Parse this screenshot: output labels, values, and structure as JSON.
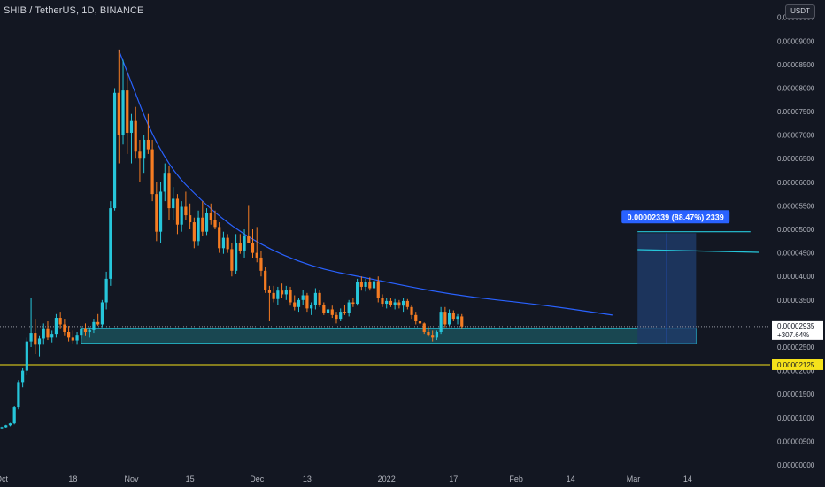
{
  "header": {
    "title": "SHIB / TetherUS, 1D, BINANCE",
    "currency": "USDT"
  },
  "colors": {
    "background": "#131722",
    "up": "#26c6da",
    "down": "#f57c22",
    "trendline": "#2962ff",
    "zone_fill": "#1f6f78",
    "zone_stroke": "#26c6da",
    "projection_fill": "#1e3a66",
    "projection_stroke": "#2962ff",
    "support_line": "#f5e21b",
    "callout": "#2962ff"
  },
  "price_tags": {
    "current": {
      "price": "0.00002935",
      "change": "+307.64%",
      "value": 2.935e-05
    },
    "support": {
      "price": "0.00002125",
      "value": 2.125e-05
    }
  },
  "range_label": "0.00002339 (88.47%) 2339",
  "chart_data": {
    "type": "candlestick",
    "title": "SHIB / TetherUS, 1D, BINANCE",
    "y_axis": {
      "unit": "USDT",
      "ticks": [
        "0.00009500",
        "0.00009000",
        "0.00008500",
        "0.00008000",
        "0.00007500",
        "0.00007000",
        "0.00006500",
        "0.00006000",
        "0.00005500",
        "0.00005000",
        "0.00004500",
        "0.00004000",
        "0.00003500",
        "0.00003000",
        "0.00002500",
        "0.00002000",
        "0.00001500",
        "0.00001000",
        "0.00000500",
        "0.00000000"
      ],
      "range": [
        0,
        9.55e-05
      ]
    },
    "x_axis": {
      "ticks": [
        "Oct",
        "18",
        "Nov",
        "15",
        "Dec",
        "13",
        "2022",
        "17",
        "Feb",
        "14",
        "Mar",
        "14"
      ],
      "tick_dates": [
        "2021-10-01",
        "2021-10-18",
        "2021-11-01",
        "2021-11-15",
        "2021-12-01",
        "2021-12-13",
        "2022-01-01",
        "2022-01-17",
        "2022-02-01",
        "2022-02-14",
        "2022-03-01",
        "2022-03-14"
      ]
    },
    "grid": false,
    "candles": [
      {
        "d": "2021-09-28",
        "o": 6.9e-06,
        "h": 7.2e-06,
        "l": 6.8e-06,
        "c": 7.1e-06
      },
      {
        "d": "2021-09-29",
        "o": 7.1e-06,
        "h": 7.5e-06,
        "l": 7e-06,
        "c": 7.4e-06
      },
      {
        "d": "2021-09-30",
        "o": 7.4e-06,
        "h": 7.9e-06,
        "l": 7.3e-06,
        "c": 7.8e-06
      },
      {
        "d": "2021-10-01",
        "o": 7.8e-06,
        "h": 8.1e-06,
        "l": 7.6e-06,
        "c": 8e-06
      },
      {
        "d": "2021-10-02",
        "o": 8e-06,
        "h": 8.5e-06,
        "l": 7.9e-06,
        "c": 8.4e-06
      },
      {
        "d": "2021-10-03",
        "o": 8.4e-06,
        "h": 8.9e-06,
        "l": 8.2e-06,
        "c": 8.8e-06
      },
      {
        "d": "2021-10-04",
        "o": 8.8e-06,
        "h": 1.25e-05,
        "l": 8.6e-06,
        "c": 1.22e-05
      },
      {
        "d": "2021-10-05",
        "o": 1.22e-05,
        "h": 1.8e-05,
        "l": 1.18e-05,
        "c": 1.76e-05
      },
      {
        "d": "2021-10-06",
        "o": 1.76e-05,
        "h": 2.05e-05,
        "l": 1.65e-05,
        "c": 2e-05
      },
      {
        "d": "2021-10-07",
        "o": 2e-05,
        "h": 2.7e-05,
        "l": 1.9e-05,
        "c": 2.62e-05
      },
      {
        "d": "2021-10-08",
        "o": 2.62e-05,
        "h": 3.55e-05,
        "l": 2.5e-05,
        "c": 2.8e-05
      },
      {
        "d": "2021-10-09",
        "o": 2.8e-05,
        "h": 3.1e-05,
        "l": 2.35e-05,
        "c": 2.55e-05
      },
      {
        "d": "2021-10-10",
        "o": 2.55e-05,
        "h": 2.75e-05,
        "l": 2.3e-05,
        "c": 2.68e-05
      },
      {
        "d": "2021-10-11",
        "o": 2.68e-05,
        "h": 3e-05,
        "l": 2.55e-05,
        "c": 2.9e-05
      },
      {
        "d": "2021-10-12",
        "o": 2.9e-05,
        "h": 3.05e-05,
        "l": 2.65e-05,
        "c": 2.7e-05
      },
      {
        "d": "2021-10-13",
        "o": 2.7e-05,
        "h": 2.85e-05,
        "l": 2.6e-05,
        "c": 2.78e-05
      },
      {
        "d": "2021-10-14",
        "o": 2.78e-05,
        "h": 3.2e-05,
        "l": 2.7e-05,
        "c": 3.12e-05
      },
      {
        "d": "2021-10-15",
        "o": 3.12e-05,
        "h": 3.25e-05,
        "l": 2.9e-05,
        "c": 2.98e-05
      },
      {
        "d": "2021-10-16",
        "o": 2.98e-05,
        "h": 3.1e-05,
        "l": 2.75e-05,
        "c": 2.82e-05
      },
      {
        "d": "2021-10-17",
        "o": 2.82e-05,
        "h": 2.95e-05,
        "l": 2.62e-05,
        "c": 2.7e-05
      },
      {
        "d": "2021-10-18",
        "o": 2.7e-05,
        "h": 2.85e-05,
        "l": 2.58e-05,
        "c": 2.64e-05
      },
      {
        "d": "2021-10-19",
        "o": 2.64e-05,
        "h": 2.82e-05,
        "l": 2.55e-05,
        "c": 2.76e-05
      },
      {
        "d": "2021-10-20",
        "o": 2.76e-05,
        "h": 2.95e-05,
        "l": 2.68e-05,
        "c": 2.9e-05
      },
      {
        "d": "2021-10-21",
        "o": 2.9e-05,
        "h": 3e-05,
        "l": 2.75e-05,
        "c": 2.82e-05
      },
      {
        "d": "2021-10-22",
        "o": 2.82e-05,
        "h": 2.92e-05,
        "l": 2.7e-05,
        "c": 2.86e-05
      },
      {
        "d": "2021-10-23",
        "o": 2.86e-05,
        "h": 3.1e-05,
        "l": 2.8e-05,
        "c": 3.03e-05
      },
      {
        "d": "2021-10-24",
        "o": 3.03e-05,
        "h": 3.2e-05,
        "l": 2.95e-05,
        "c": 2.98e-05
      },
      {
        "d": "2021-10-25",
        "o": 2.98e-05,
        "h": 3.5e-05,
        "l": 2.92e-05,
        "c": 3.45e-05
      },
      {
        "d": "2021-10-26",
        "o": 3.45e-05,
        "h": 4.1e-05,
        "l": 3.3e-05,
        "c": 3.95e-05
      },
      {
        "d": "2021-10-27",
        "o": 3.95e-05,
        "h": 5.6e-05,
        "l": 3.8e-05,
        "c": 5.45e-05
      },
      {
        "d": "2021-10-28",
        "o": 5.45e-05,
        "h": 8e-05,
        "l": 5.4e-05,
        "c": 7.9e-05
      },
      {
        "d": "2021-10-29",
        "o": 7.9e-05,
        "h": 8.82e-05,
        "l": 6.4e-05,
        "c": 7e-05
      },
      {
        "d": "2021-10-30",
        "o": 7e-05,
        "h": 8.6e-05,
        "l": 6.8e-05,
        "c": 7.95e-05
      },
      {
        "d": "2021-10-31",
        "o": 7.95e-05,
        "h": 8.3e-05,
        "l": 6.6e-05,
        "c": 7.05e-05
      },
      {
        "d": "2021-11-01",
        "o": 7.05e-05,
        "h": 7.45e-05,
        "l": 6.4e-05,
        "c": 7.3e-05
      },
      {
        "d": "2021-11-02",
        "o": 7.3e-05,
        "h": 7.6e-05,
        "l": 6.5e-05,
        "c": 6.65e-05
      },
      {
        "d": "2021-11-03",
        "o": 6.65e-05,
        "h": 6.9e-05,
        "l": 6e-05,
        "c": 6.5e-05
      },
      {
        "d": "2021-11-04",
        "o": 6.5e-05,
        "h": 7e-05,
        "l": 6.2e-05,
        "c": 6.9e-05
      },
      {
        "d": "2021-11-05",
        "o": 6.9e-05,
        "h": 7.45e-05,
        "l": 6.6e-05,
        "c": 6.7e-05
      },
      {
        "d": "2021-11-06",
        "o": 6.7e-05,
        "h": 6.9e-05,
        "l": 5.6e-05,
        "c": 5.75e-05
      },
      {
        "d": "2021-11-07",
        "o": 5.75e-05,
        "h": 6e-05,
        "l": 4.75e-05,
        "c": 4.95e-05
      },
      {
        "d": "2021-11-08",
        "o": 4.95e-05,
        "h": 6e-05,
        "l": 4.7e-05,
        "c": 5.8e-05
      },
      {
        "d": "2021-11-09",
        "o": 5.8e-05,
        "h": 6.4e-05,
        "l": 5.6e-05,
        "c": 6.2e-05
      },
      {
        "d": "2021-11-10",
        "o": 6.2e-05,
        "h": 6.35e-05,
        "l": 5.2e-05,
        "c": 5.45e-05
      },
      {
        "d": "2021-11-11",
        "o": 5.45e-05,
        "h": 5.9e-05,
        "l": 5.2e-05,
        "c": 5.65e-05
      },
      {
        "d": "2021-11-12",
        "o": 5.65e-05,
        "h": 5.75e-05,
        "l": 4.9e-05,
        "c": 5.1e-05
      },
      {
        "d": "2021-11-13",
        "o": 5.1e-05,
        "h": 5.6e-05,
        "l": 4.95e-05,
        "c": 5.48e-05
      },
      {
        "d": "2021-11-14",
        "o": 5.48e-05,
        "h": 5.8e-05,
        "l": 5.2e-05,
        "c": 5.3e-05
      },
      {
        "d": "2021-11-15",
        "o": 5.3e-05,
        "h": 5.55e-05,
        "l": 5e-05,
        "c": 5.15e-05
      },
      {
        "d": "2021-11-16",
        "o": 5.15e-05,
        "h": 5.25e-05,
        "l": 4.6e-05,
        "c": 4.75e-05
      },
      {
        "d": "2021-11-17",
        "o": 4.75e-05,
        "h": 5.4e-05,
        "l": 4.65e-05,
        "c": 5.25e-05
      },
      {
        "d": "2021-11-18",
        "o": 5.25e-05,
        "h": 5.6e-05,
        "l": 4.85e-05,
        "c": 4.95e-05
      },
      {
        "d": "2021-11-19",
        "o": 4.95e-05,
        "h": 5.45e-05,
        "l": 4.88e-05,
        "c": 5.35e-05
      },
      {
        "d": "2021-11-20",
        "o": 5.35e-05,
        "h": 5.55e-05,
        "l": 5.1e-05,
        "c": 5.2e-05
      },
      {
        "d": "2021-11-21",
        "o": 5.2e-05,
        "h": 5.4e-05,
        "l": 5e-05,
        "c": 5.05e-05
      },
      {
        "d": "2021-11-22",
        "o": 5.05e-05,
        "h": 5.15e-05,
        "l": 4.5e-05,
        "c": 4.6e-05
      },
      {
        "d": "2021-11-23",
        "o": 4.6e-05,
        "h": 4.95e-05,
        "l": 4.48e-05,
        "c": 4.82e-05
      },
      {
        "d": "2021-11-24",
        "o": 4.82e-05,
        "h": 4.9e-05,
        "l": 4.5e-05,
        "c": 4.58e-05
      },
      {
        "d": "2021-11-25",
        "o": 4.58e-05,
        "h": 4.7e-05,
        "l": 4e-05,
        "c": 4.12e-05
      },
      {
        "d": "2021-11-26",
        "o": 4.12e-05,
        "h": 4.9e-05,
        "l": 4.05e-05,
        "c": 4.7e-05
      },
      {
        "d": "2021-11-27",
        "o": 4.7e-05,
        "h": 4.9e-05,
        "l": 4.48e-05,
        "c": 4.55e-05
      },
      {
        "d": "2021-11-28",
        "o": 4.55e-05,
        "h": 5e-05,
        "l": 4.4e-05,
        "c": 4.85e-05
      },
      {
        "d": "2021-11-29",
        "o": 4.85e-05,
        "h": 5.5e-05,
        "l": 4.7e-05,
        "c": 4.7e-05
      },
      {
        "d": "2021-11-30",
        "o": 4.7e-05,
        "h": 5e-05,
        "l": 4.4e-05,
        "c": 4.5e-05
      },
      {
        "d": "2021-12-01",
        "o": 4.5e-05,
        "h": 5.05e-05,
        "l": 4.3e-05,
        "c": 4.4e-05
      },
      {
        "d": "2021-12-02",
        "o": 4.4e-05,
        "h": 4.55e-05,
        "l": 4e-05,
        "c": 4.12e-05
      },
      {
        "d": "2021-12-03",
        "o": 4.12e-05,
        "h": 4.2e-05,
        "l": 3.65e-05,
        "c": 3.72e-05
      },
      {
        "d": "2021-12-04",
        "o": 3.72e-05,
        "h": 3.8e-05,
        "l": 3.05e-05,
        "c": 3.65e-05
      },
      {
        "d": "2021-12-05",
        "o": 3.65e-05,
        "h": 3.8e-05,
        "l": 3.45e-05,
        "c": 3.52e-05
      },
      {
        "d": "2021-12-06",
        "o": 3.52e-05,
        "h": 3.78e-05,
        "l": 3.4e-05,
        "c": 3.7e-05
      },
      {
        "d": "2021-12-07",
        "o": 3.7e-05,
        "h": 3.85e-05,
        "l": 3.55e-05,
        "c": 3.62e-05
      },
      {
        "d": "2021-12-08",
        "o": 3.62e-05,
        "h": 3.8e-05,
        "l": 3.5e-05,
        "c": 3.72e-05
      },
      {
        "d": "2021-12-09",
        "o": 3.72e-05,
        "h": 3.78e-05,
        "l": 3.38e-05,
        "c": 3.45e-05
      },
      {
        "d": "2021-12-10",
        "o": 3.45e-05,
        "h": 3.6e-05,
        "l": 3.28e-05,
        "c": 3.35e-05
      },
      {
        "d": "2021-12-11",
        "o": 3.35e-05,
        "h": 3.55e-05,
        "l": 3.25e-05,
        "c": 3.5e-05
      },
      {
        "d": "2021-12-12",
        "o": 3.5e-05,
        "h": 3.72e-05,
        "l": 3.4e-05,
        "c": 3.6e-05
      },
      {
        "d": "2021-12-13",
        "o": 3.6e-05,
        "h": 3.65e-05,
        "l": 3.25e-05,
        "c": 3.32e-05
      },
      {
        "d": "2021-12-14",
        "o": 3.32e-05,
        "h": 3.45e-05,
        "l": 3.18e-05,
        "c": 3.4e-05
      },
      {
        "d": "2021-12-15",
        "o": 3.4e-05,
        "h": 3.75e-05,
        "l": 3.3e-05,
        "c": 3.65e-05
      },
      {
        "d": "2021-12-16",
        "o": 3.65e-05,
        "h": 3.72e-05,
        "l": 3.35e-05,
        "c": 3.4e-05
      },
      {
        "d": "2021-12-17",
        "o": 3.4e-05,
        "h": 3.45e-05,
        "l": 3.18e-05,
        "c": 3.22e-05
      },
      {
        "d": "2021-12-18",
        "o": 3.22e-05,
        "h": 3.35e-05,
        "l": 3.15e-05,
        "c": 3.3e-05
      },
      {
        "d": "2021-12-19",
        "o": 3.3e-05,
        "h": 3.38e-05,
        "l": 3.12e-05,
        "c": 3.18e-05
      },
      {
        "d": "2021-12-20",
        "o": 3.18e-05,
        "h": 3.25e-05,
        "l": 3e-05,
        "c": 3.1e-05
      },
      {
        "d": "2021-12-21",
        "o": 3.1e-05,
        "h": 3.32e-05,
        "l": 3.05e-05,
        "c": 3.25e-05
      },
      {
        "d": "2021-12-22",
        "o": 3.25e-05,
        "h": 3.4e-05,
        "l": 3.18e-05,
        "c": 3.22e-05
      },
      {
        "d": "2021-12-23",
        "o": 3.22e-05,
        "h": 3.5e-05,
        "l": 3.15e-05,
        "c": 3.45e-05
      },
      {
        "d": "2021-12-24",
        "o": 3.45e-05,
        "h": 3.55e-05,
        "l": 3.35e-05,
        "c": 3.42e-05
      },
      {
        "d": "2021-12-25",
        "o": 3.42e-05,
        "h": 3.95e-05,
        "l": 3.38e-05,
        "c": 3.88e-05
      },
      {
        "d": "2021-12-26",
        "o": 3.88e-05,
        "h": 4e-05,
        "l": 3.7e-05,
        "c": 3.78e-05
      },
      {
        "d": "2021-12-27",
        "o": 3.78e-05,
        "h": 3.95e-05,
        "l": 3.68e-05,
        "c": 3.88e-05
      },
      {
        "d": "2021-12-28",
        "o": 3.88e-05,
        "h": 3.98e-05,
        "l": 3.7e-05,
        "c": 3.75e-05
      },
      {
        "d": "2021-12-29",
        "o": 3.75e-05,
        "h": 3.95e-05,
        "l": 3.65e-05,
        "c": 3.9e-05
      },
      {
        "d": "2021-12-30",
        "o": 3.9e-05,
        "h": 4e-05,
        "l": 3.45e-05,
        "c": 3.55e-05
      },
      {
        "d": "2021-12-31",
        "o": 3.55e-05,
        "h": 3.62e-05,
        "l": 3.35e-05,
        "c": 3.42e-05
      },
      {
        "d": "2022-01-01",
        "o": 3.42e-05,
        "h": 3.55e-05,
        "l": 3.32e-05,
        "c": 3.48e-05
      },
      {
        "d": "2022-01-02",
        "o": 3.48e-05,
        "h": 3.55e-05,
        "l": 3.35e-05,
        "c": 3.4e-05
      },
      {
        "d": "2022-01-03",
        "o": 3.4e-05,
        "h": 3.52e-05,
        "l": 3.3e-05,
        "c": 3.45e-05
      },
      {
        "d": "2022-01-04",
        "o": 3.45e-05,
        "h": 3.5e-05,
        "l": 3.32e-05,
        "c": 3.38e-05
      },
      {
        "d": "2022-01-05",
        "o": 3.38e-05,
        "h": 3.55e-05,
        "l": 3.25e-05,
        "c": 3.48e-05
      },
      {
        "d": "2022-01-06",
        "o": 3.48e-05,
        "h": 3.52e-05,
        "l": 3.3e-05,
        "c": 3.35e-05
      },
      {
        "d": "2022-01-07",
        "o": 3.35e-05,
        "h": 3.4e-05,
        "l": 3.1e-05,
        "c": 3.18e-05
      },
      {
        "d": "2022-01-08",
        "o": 3.18e-05,
        "h": 3.25e-05,
        "l": 2.98e-05,
        "c": 3.05e-05
      },
      {
        "d": "2022-01-09",
        "o": 3.05e-05,
        "h": 3.12e-05,
        "l": 2.9e-05,
        "c": 3e-05
      },
      {
        "d": "2022-01-10",
        "o": 3e-05,
        "h": 3.02e-05,
        "l": 2.78e-05,
        "c": 2.82e-05
      },
      {
        "d": "2022-01-11",
        "o": 2.82e-05,
        "h": 2.95e-05,
        "l": 2.72e-05,
        "c": 2.76e-05
      },
      {
        "d": "2022-01-12",
        "o": 2.76e-05,
        "h": 2.85e-05,
        "l": 2.62e-05,
        "c": 2.7e-05
      },
      {
        "d": "2022-01-13",
        "o": 2.7e-05,
        "h": 2.85e-05,
        "l": 2.65e-05,
        "c": 2.82e-05
      },
      {
        "d": "2022-01-14",
        "o": 2.82e-05,
        "h": 3.35e-05,
        "l": 2.78e-05,
        "c": 3.25e-05
      },
      {
        "d": "2022-01-15",
        "o": 3.25e-05,
        "h": 3.35e-05,
        "l": 2.92e-05,
        "c": 2.98e-05
      },
      {
        "d": "2022-01-16",
        "o": 2.98e-05,
        "h": 3.3e-05,
        "l": 2.95e-05,
        "c": 3.22e-05
      },
      {
        "d": "2022-01-17",
        "o": 3.22e-05,
        "h": 3.28e-05,
        "l": 3.05e-05,
        "c": 3.1e-05
      },
      {
        "d": "2022-01-18",
        "o": 3.1e-05,
        "h": 3.2e-05,
        "l": 2.98e-05,
        "c": 3.15e-05
      },
      {
        "d": "2022-01-19",
        "o": 3.15e-05,
        "h": 3.2e-05,
        "l": 2.9e-05,
        "c": 2.94e-05
      }
    ],
    "annotations": {
      "trendline_curve": [
        {
          "d": "2021-10-29",
          "p": 8.8e-05
        },
        {
          "d": "2021-11-08",
          "p": 6.5e-05
        },
        {
          "d": "2021-11-20",
          "p": 5.4e-05
        },
        {
          "d": "2021-12-01",
          "p": 4.7e-05
        },
        {
          "d": "2021-12-14",
          "p": 4.2e-05
        },
        {
          "d": "2021-12-28",
          "p": 3.95e-05
        },
        {
          "d": "2022-01-17",
          "p": 3.6e-05
        },
        {
          "d": "2022-02-07",
          "p": 3.4e-05
        },
        {
          "d": "2022-02-24",
          "p": 3.18e-05
        }
      ],
      "support_zone": {
        "from": "2021-10-20",
        "to": "2022-03-16",
        "low": 2.58e-05,
        "high": 2.9e-05
      },
      "projection_box": {
        "from": "2022-03-02",
        "to": "2022-03-16",
        "low": 2.58e-05,
        "high": 4.92e-05
      },
      "projection_mid_line": {
        "d": "2022-03-09"
      },
      "level_line_a": {
        "from": "2022-03-02",
        "to": "2022-03-29",
        "p": 4.95e-05
      },
      "level_line_b": {
        "from": "2022-03-02",
        "to": "2022-03-31",
        "p": 4.55e-05
      },
      "support_line": {
        "p": 2.125e-05
      },
      "current_price_line": {
        "p": 2.935e-05
      }
    }
  }
}
